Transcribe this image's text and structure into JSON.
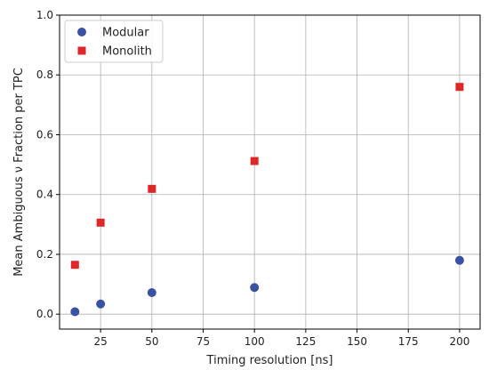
{
  "chart_data": {
    "type": "scatter",
    "xlabel": "Timing resolution [ns]",
    "ylabel": "Mean Ambiguous ν Fraction per TPC",
    "xlim": [
      5,
      210
    ],
    "ylim": [
      -0.05,
      1.0
    ],
    "xticks": [
      25,
      50,
      75,
      100,
      125,
      150,
      175,
      200
    ],
    "yticks": [
      0.0,
      0.2,
      0.4,
      0.6,
      0.8,
      1.0
    ],
    "ytick_labels": [
      "0.0",
      "0.2",
      "0.4",
      "0.6",
      "0.8",
      "1.0"
    ],
    "grid": true,
    "legend_position": "top-left",
    "series": [
      {
        "name": "Modular",
        "marker": "circle",
        "color": "#3a52a4",
        "points": [
          {
            "x": 12.5,
            "y": 0.008
          },
          {
            "x": 25,
            "y": 0.034
          },
          {
            "x": 50,
            "y": 0.072
          },
          {
            "x": 100,
            "y": 0.089
          },
          {
            "x": 200,
            "y": 0.18
          }
        ]
      },
      {
        "name": "Monolith",
        "marker": "square",
        "color": "#e02727",
        "points": [
          {
            "x": 12.5,
            "y": 0.165
          },
          {
            "x": 25,
            "y": 0.306
          },
          {
            "x": 50,
            "y": 0.419
          },
          {
            "x": 100,
            "y": 0.512
          },
          {
            "x": 200,
            "y": 0.76
          }
        ]
      }
    ]
  }
}
